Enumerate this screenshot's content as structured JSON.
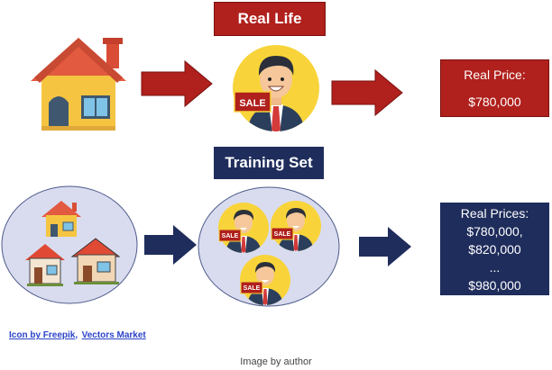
{
  "top_row": {
    "label": "Real Life",
    "result_title": "Real Price:",
    "result_value": "$780,000"
  },
  "bottom_row": {
    "label": "Training Set",
    "results": [
      "Real Prices:",
      "$780,000,",
      "$820,000",
      "...",
      "$980,000"
    ]
  },
  "agent_badge": "SALE",
  "credits": {
    "freepik": "Icon by Freepik",
    "separator": ",",
    "vectors_market": "Vectors Market"
  },
  "caption": "Image by author",
  "colors": {
    "red": "#b0201c",
    "navy": "#1f2d5c",
    "circle_fill": "#d9dcef"
  },
  "icons": [
    "house-icon",
    "arrow-right-icon",
    "sales-agent-icon"
  ]
}
